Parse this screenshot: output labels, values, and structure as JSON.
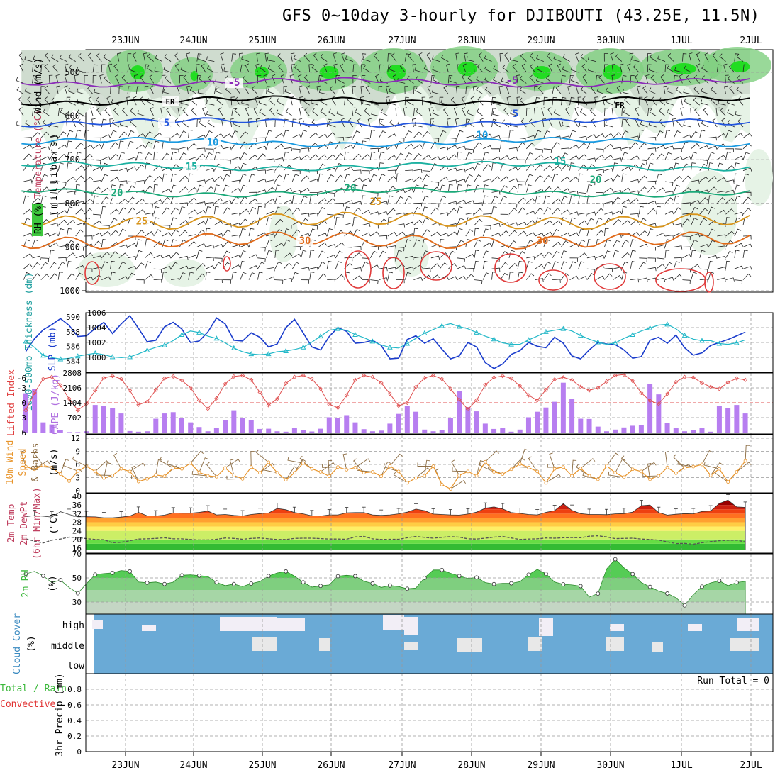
{
  "title": "GFS 0~10day 3-hourly for DJIBOUTI (43.25E, 11.5N)",
  "date_labels": [
    "23JUN",
    "24JUN",
    "25JUN",
    "26JUN",
    "27JUN",
    "28JUN",
    "29JUN",
    "30JUN",
    "1JUL",
    "2JUL"
  ],
  "chart_data": [
    {
      "type": "contour",
      "name": "upper-air",
      "ylabel_parts": [
        "RH (%)",
        "Temperature (°C)",
        "Wind (m/s)",
        "(millibars)"
      ],
      "y_ticks": [
        500,
        600,
        700,
        800,
        900,
        1000
      ],
      "ylim": [
        1000,
        450
      ],
      "isotherm_labels": [
        "-5",
        "FR",
        "5",
        "10",
        "15",
        "20",
        "25",
        "30"
      ],
      "isotherms": [
        {
          "label": "-5",
          "pressure_mb": 523
        },
        {
          "label": "FR",
          "pressure_mb": 565
        },
        {
          "label": "5",
          "pressure_mb": 615
        },
        {
          "label": "10",
          "pressure_mb": 660
        },
        {
          "label": "15",
          "pressure_mb": 715
        },
        {
          "label": "20",
          "pressure_mb": 775
        },
        {
          "label": "25",
          "pressure_mb": 840
        },
        {
          "label": "30",
          "pressure_mb": 885
        }
      ]
    },
    {
      "type": "line",
      "name": "thickness-slp",
      "ylabel_left": "1000-500mb Thickness (dm)",
      "ylabel_right": "SLP (mb)",
      "left_ticks": [
        584,
        586,
        588,
        590
      ],
      "right_ticks": [
        1000,
        1002,
        1004,
        1006
      ],
      "series": [
        {
          "name": "SLP",
          "values": [
            1000.8,
            1002.5,
            1003.7,
            1004.4,
            1005.2,
            1004.3,
            1002.8,
            1002.9,
            1003.9,
            1004.7,
            1003.2,
            1004.5,
            1005.6,
            1003.9,
            1002.1,
            1002.3,
            1004.1,
            1004.7,
            1003.8,
            1002.0,
            1002.2,
            1003.4,
            1005.3,
            1004.5,
            1002.3,
            1002.2,
            1003.3,
            1002.7,
            1001.4,
            1001.8,
            1004.0,
            1005.1,
            1003.3,
            1001.4,
            1001.0,
            1002.8,
            1004.0,
            1003.5,
            1001.9,
            1002.0,
            1002.3,
            1001.6,
            999.8,
            999.9,
            1002.4,
            1002.9,
            1001.9,
            1002.5,
            1001.1,
            999.8,
            1000.2,
            1002.0,
            1001.4,
            999.3,
            998.5,
            999.1,
            1000.4,
            1000.9,
            1002.0,
            1001.5,
            1001.3,
            1002.7,
            1001.9,
            1000.2,
            999.8,
            1001.0,
            1002.0,
            1001.8,
            1001.7,
            1001.0,
            999.9,
            1000.1,
            1002.3,
            1002.7,
            1001.9,
            1003.0,
            1001.3,
            1000.3,
            1000.6,
            1001.6,
            1002.0,
            1002.4,
            1002.9,
            1003.4
          ]
        },
        {
          "name": "1000-500mb Thickness",
          "values": [
            586.7,
            585.9,
            584.8,
            584.5,
            584.3,
            584.4,
            584.7,
            584.9,
            585.1,
            584.9,
            584.6,
            584.5,
            584.6,
            585.0,
            585.5,
            585.9,
            586.2,
            586.8,
            587.6,
            588.1,
            587.9,
            587.4,
            587.1,
            586.5,
            585.8,
            585.3,
            585.0,
            584.9,
            585.0,
            585.3,
            585.4,
            585.6,
            585.9,
            586.6,
            587.4,
            588.2,
            588.4,
            588.2,
            587.6,
            587.2,
            586.7,
            586.2,
            585.9,
            585.8,
            586.4,
            587.1,
            587.8,
            588.3,
            588.8,
            589.1,
            588.7,
            588.4,
            587.9,
            587.4,
            587.0,
            586.5,
            586.3,
            586.3,
            586.9,
            587.4,
            588.0,
            588.2,
            588.4,
            588.1,
            587.5,
            587.0,
            586.6,
            586.3,
            586.5,
            587.1,
            587.6,
            588.1,
            588.5,
            588.9,
            589.0,
            588.4,
            587.5,
            587.0,
            586.8,
            586.8,
            586.4,
            586.3,
            586.5,
            586.9
          ]
        }
      ]
    },
    {
      "type": "bar+line",
      "name": "cape-lifted-index",
      "ylabel_left": "Lifted Index",
      "ylabel_right": "CAPE (J/kg)",
      "li_ticks": [
        "-6",
        "-3",
        "0",
        "3",
        "6"
      ],
      "cape_ticks": [
        "2808",
        "2106",
        "1404",
        "702"
      ],
      "series": [
        {
          "name": "CAPE",
          "values": [
            1850,
            2050,
            480,
            380,
            120,
            20,
            20,
            60,
            1300,
            1250,
            1150,
            900,
            70,
            40,
            60,
            650,
            900,
            960,
            700,
            480,
            260,
            60,
            220,
            600,
            1050,
            700,
            600,
            170,
            180,
            60,
            40,
            200,
            130,
            50,
            180,
            720,
            690,
            820,
            480,
            160,
            60,
            90,
            420,
            880,
            1240,
            980,
            140,
            60,
            100,
            700,
            1950,
            1200,
            1000,
            420,
            170,
            200,
            40,
            140,
            720,
            980,
            1180,
            1450,
            2350,
            1600,
            650,
            640,
            280,
            60,
            140,
            240,
            320,
            340,
            2280,
            1800,
            450,
            200,
            60,
            100,
            200,
            40,
            1250,
            1150,
            1300,
            900
          ]
        },
        {
          "name": "Lifted Index",
          "values": [
            1.5,
            -2.0,
            -4.8,
            -5.2,
            -3.5,
            -0.8,
            1.5,
            0.2,
            -2.5,
            -5.0,
            -5.4,
            -4.8,
            -2.5,
            0.4,
            -0.2,
            -2.6,
            -4.9,
            -5.3,
            -4.5,
            -3.0,
            -0.5,
            1.2,
            -0.9,
            -3.8,
            -5.3,
            -5.5,
            -4.6,
            -2.1,
            0.5,
            -0.8,
            -3.9,
            -5.2,
            -5.5,
            -4.8,
            -2.8,
            0.3,
            1.0,
            -1.5,
            -4.6,
            -5.5,
            -5.2,
            -4.0,
            -1.8,
            0.6,
            0.0,
            -3.2,
            -5.0,
            -5.5,
            -4.8,
            -2.8,
            -0.6,
            1.3,
            -0.5,
            -3.6,
            -5.1,
            -5.4,
            -4.9,
            -3.4,
            -1.5,
            -0.5,
            -2.6,
            -4.7,
            -5.1,
            -4.6,
            -3.2,
            -2.5,
            -3.0,
            -4.3,
            -5.5,
            -5.7,
            -4.4,
            -2.0,
            -0.4,
            0.2,
            -1.8,
            -4.2,
            -5.2,
            -5.1,
            -4.0,
            -3.2,
            -2.8,
            -4.1,
            -4.9,
            -4.6
          ]
        }
      ]
    },
    {
      "type": "line",
      "name": "10m-wind",
      "ylabel": "10m Wind Speed & Barbs (m/s)",
      "y_ticks": [
        0,
        3,
        6,
        9,
        12
      ],
      "series": [
        {
          "name": "10m Wind Speed",
          "values": [
            5.5,
            4.9,
            5.8,
            5.3,
            3.8,
            2.2,
            4.5,
            5.6,
            4.4,
            2.9,
            3.5,
            5.0,
            4.4,
            2.1,
            2.7,
            3.6,
            3.3,
            5.2,
            5.0,
            6.3,
            4.2,
            3.4,
            3.2,
            5.2,
            3.5,
            2.7,
            5.4,
            4.1,
            6.5,
            4.1,
            2.5,
            4.1,
            6.3,
            5.0,
            4.3,
            3.3,
            5.4,
            4.8,
            5.3,
            4.1,
            4.3,
            3.3,
            5.6,
            4.4,
            1.8,
            2.9,
            3.4,
            5.6,
            1.4,
            0.4,
            3.5,
            4.4,
            3.4,
            6.6,
            4.3,
            3.8,
            4.9,
            6.1,
            5.3,
            4.4,
            1.8,
            5.0,
            5.4,
            3.4,
            5.1,
            3.4,
            2.6,
            5.7,
            4.1,
            3.1,
            4.9,
            4.4,
            2.6,
            3.4,
            5.3,
            4.0,
            5.2,
            5.5,
            6.0,
            3.5,
            5.0,
            2.0,
            4.3,
            6.8
          ]
        }
      ]
    },
    {
      "type": "area+line",
      "name": "2m-temp",
      "ylabel": "2m Temp 2m DewPt (6hr Min/Max) (°C)",
      "y_ticks": [
        16,
        20,
        24,
        28,
        32,
        36,
        40
      ],
      "series": [
        {
          "name": "2m Temp",
          "values": [
            30.6,
            31.1,
            30.8,
            30.4,
            32.9,
            31.6,
            30.5,
            30.6,
            30.5,
            30.1,
            30.1,
            30.4,
            30.9,
            32.6,
            31.0,
            30.9,
            31.3,
            32.3,
            32.2,
            32.2,
            32.6,
            33.2,
            31.4,
            31.6,
            31.2,
            30.9,
            31.6,
            32.0,
            32.3,
            34.4,
            33.8,
            32.5,
            31.9,
            31.0,
            30.9,
            31.4,
            31.4,
            32.4,
            32.5,
            32.5,
            31.4,
            31.2,
            31.4,
            31.9,
            32.7,
            34.1,
            33.4,
            31.8,
            31.6,
            31.4,
            31.3,
            31.8,
            32.7,
            34.5,
            35.1,
            34.2,
            32.5,
            32.1,
            31.6,
            31.4,
            32.6,
            33.4,
            36.6,
            33.5,
            32.0,
            31.6,
            31.6,
            31.5,
            31.9,
            32.0,
            32.7,
            35.7,
            36.0,
            32.5,
            31.3,
            31.7,
            32.0,
            31.9,
            33.0,
            33.2,
            36.7,
            38.3,
            35.1,
            34.9
          ]
        },
        {
          "name": "2m DewPt",
          "values": [
            20.3,
            19.2,
            18.4,
            19.7,
            20.2,
            21.1,
            20.9,
            20.4,
            20.0,
            19.9,
            18.5,
            18.7,
            19.4,
            20.2,
            20.3,
            20.5,
            20.8,
            20.3,
            20.3,
            20.0,
            19.8,
            19.8,
            20.1,
            20.7,
            20.5,
            20.1,
            20.5,
            20.7,
            20.3,
            20.0,
            20.0,
            20.5,
            20.6,
            20.6,
            20.4,
            20.2,
            20.2,
            20.1,
            21.2,
            21.4,
            20.3,
            20.0,
            20.1,
            20.1,
            20.8,
            21.4,
            21.0,
            20.6,
            21.0,
            21.3,
            21.1,
            20.3,
            20.2,
            20.6,
            21.1,
            21.4,
            20.7,
            20.0,
            20.2,
            20.3,
            20.7,
            20.6,
            20.8,
            20.9,
            20.8,
            21.5,
            21.7,
            21.2,
            20.4,
            20.5,
            20.6,
            20.2,
            20.0,
            19.7,
            18.9,
            18.1,
            18.2,
            17.8,
            18.5,
            19.0,
            19.4,
            19.6,
            19.6,
            18.9
          ]
        }
      ]
    },
    {
      "type": "area+line",
      "name": "2m-rh",
      "ylabel": "2m RH (%)",
      "y_ticks": [
        30,
        50,
        70
      ],
      "series": [
        {
          "name": "2m RH",
          "values": [
            53.3,
            55.4,
            51.7,
            46.1,
            48.2,
            42.0,
            37.3,
            45.2,
            52.8,
            53.6,
            54.2,
            56.1,
            55.4,
            46.6,
            46.0,
            46.6,
            44.9,
            46.5,
            52.2,
            52.6,
            51.9,
            51.2,
            46.3,
            43.6,
            44.9,
            42.9,
            45.3,
            47.0,
            51.6,
            54.1,
            55.4,
            51.5,
            46.4,
            42.4,
            43.4,
            44.2,
            51.4,
            52.2,
            51.5,
            47.3,
            45.4,
            42.1,
            43.7,
            42.8,
            41.0,
            41.6,
            50.1,
            56.6,
            56.6,
            53.8,
            51.6,
            49.6,
            50.4,
            46.2,
            44.9,
            45.5,
            45.5,
            46.9,
            52.7,
            57.1,
            53.4,
            46.6,
            44.7,
            44.2,
            43.2,
            34.1,
            37.0,
            57.4,
            65.5,
            58.4,
            53.2,
            46.2,
            42.6,
            39.1,
            37.1,
            33.6,
            27.2,
            36.1,
            42.8,
            45.9,
            47.6,
            43.5,
            46.2,
            47.1
          ]
        }
      ]
    },
    {
      "type": "bar",
      "name": "cloud-cover",
      "ylabel": "Cloud Cover (%)",
      "levels": [
        "high",
        "middle",
        "low"
      ]
    },
    {
      "type": "bar",
      "name": "precip",
      "ylabel_parts": [
        "Total / Rain",
        "Convective",
        "3hr Precip (mm)"
      ],
      "y_ticks": [
        "0",
        "0.2",
        "0.4",
        "0.6",
        "0.8"
      ],
      "run_total_label": "Run Total = 0"
    }
  ],
  "colors": {
    "grid": "#999999",
    "rh_green": "#44cc44",
    "rh_light": "#e6f3e6",
    "rh_gray": "#9ea89e",
    "slp_blue": "#1a3ccc",
    "thickness_cyan": "#22b8c8",
    "cape_purple": "#b77ef0",
    "li_red": "#e05050",
    "wind_orange": "#e8942a",
    "cloud_blue": "#6aaad6",
    "precip_green": "#3bb83b",
    "precip_red": "#e03030"
  }
}
